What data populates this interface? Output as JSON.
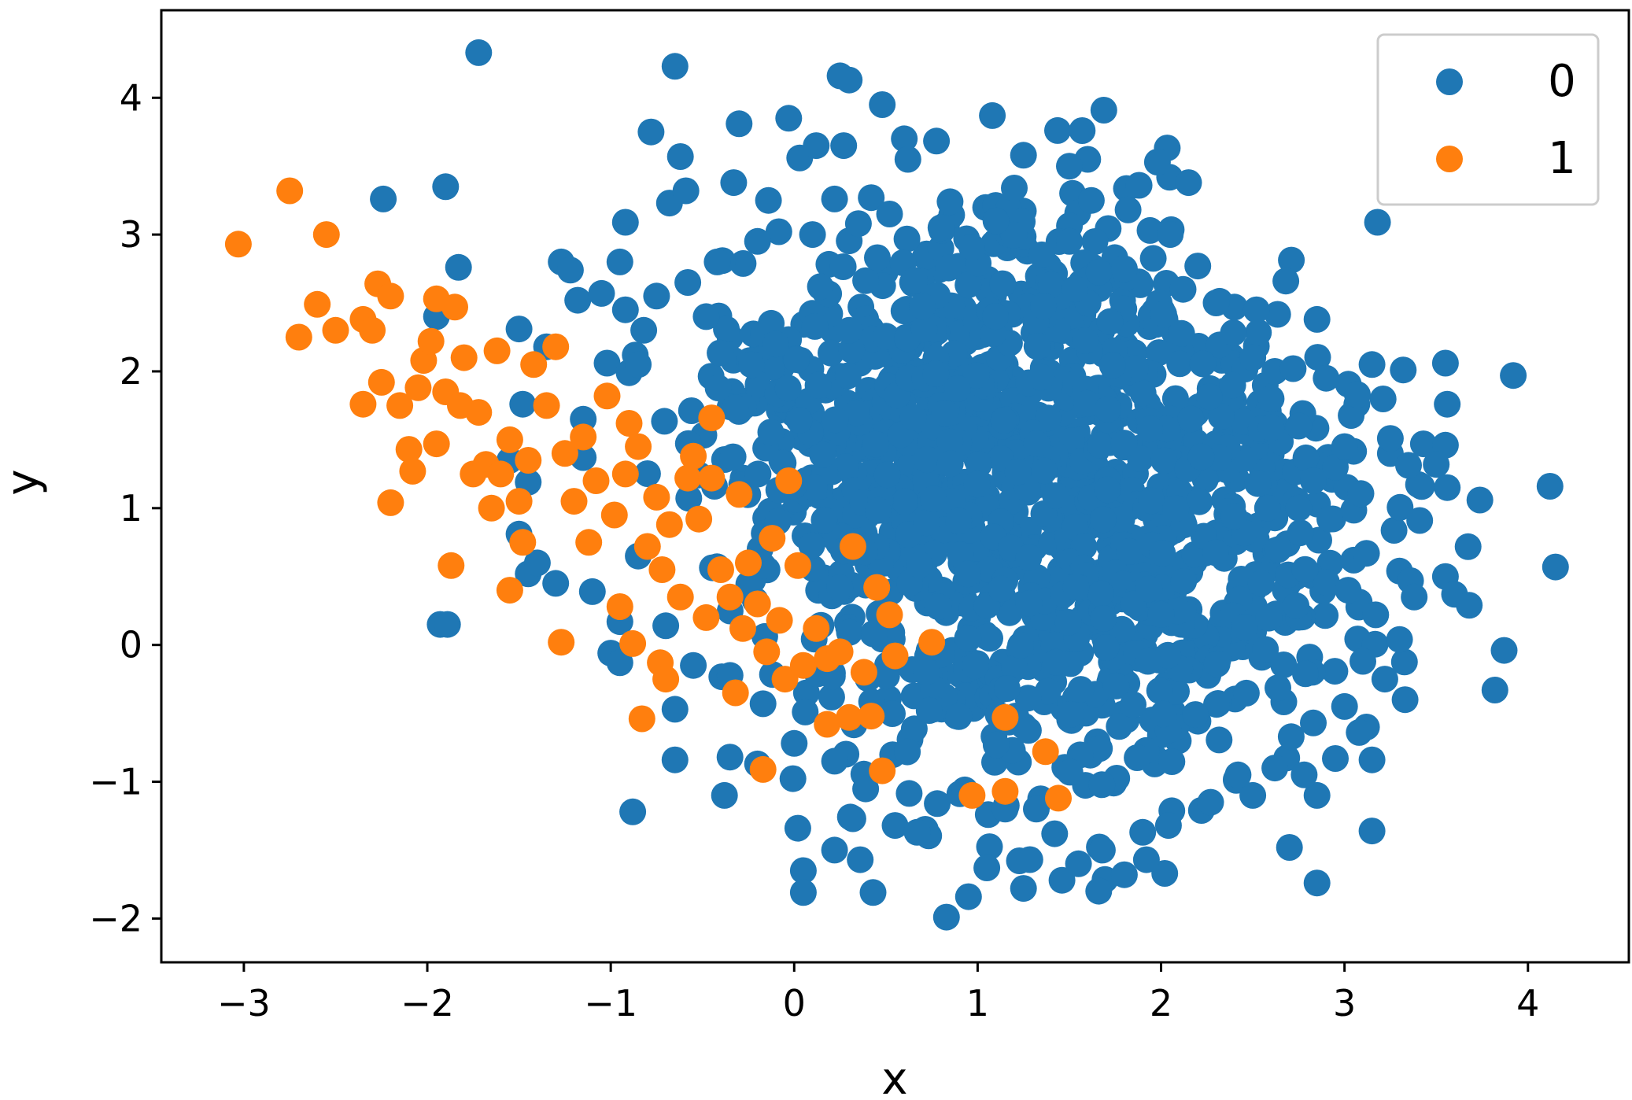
{
  "chart_data": {
    "type": "scatter",
    "title": "",
    "xlabel": "x",
    "ylabel": "y",
    "xlim": [
      -3.45,
      4.55
    ],
    "ylim": [
      -2.32,
      4.64
    ],
    "x_ticks": [
      -3,
      -2,
      -1,
      0,
      1,
      2,
      3,
      4
    ],
    "y_ticks": [
      -2,
      -1,
      0,
      1,
      2,
      3,
      4
    ],
    "x_tick_labels": [
      "−3",
      "−2",
      "−1",
      "0",
      "1",
      "2",
      "3",
      "4"
    ],
    "y_tick_labels": [
      "−2",
      "−1",
      "0",
      "1",
      "2",
      "3",
      "4"
    ],
    "grid": false,
    "legend_position": "top-right",
    "series": [
      {
        "name": "0",
        "color": "#1f77b4",
        "points": [
          [
            -1.72,
            4.33
          ],
          [
            -0.65,
            4.23
          ],
          [
            0.25,
            4.16
          ],
          [
            0.3,
            4.13
          ],
          [
            -0.78,
            3.75
          ],
          [
            -0.3,
            3.81
          ],
          [
            0.48,
            3.95
          ],
          [
            -0.03,
            3.85
          ],
          [
            1.08,
            3.87
          ],
          [
            -0.62,
            3.57
          ],
          [
            0.03,
            3.56
          ],
          [
            0.12,
            3.65
          ],
          [
            0.27,
            3.65
          ],
          [
            0.6,
            3.7
          ],
          [
            0.62,
            3.55
          ],
          [
            1.57,
            3.76
          ],
          [
            1.6,
            3.55
          ],
          [
            1.5,
            3.5
          ],
          [
            1.25,
            3.58
          ],
          [
            1.98,
            3.53
          ],
          [
            1.88,
            3.36
          ],
          [
            2.15,
            3.38
          ],
          [
            -1.9,
            3.35
          ],
          [
            -2.24,
            3.26
          ],
          [
            3.18,
            3.09
          ],
          [
            2.68,
            2.66
          ],
          [
            2.85,
            2.38
          ],
          [
            -1.83,
            2.76
          ],
          [
            -1.27,
            2.8
          ],
          [
            -1.22,
            2.74
          ],
          [
            -0.95,
            2.8
          ],
          [
            -0.92,
            3.09
          ],
          [
            -0.68,
            3.23
          ],
          [
            -0.59,
            3.32
          ],
          [
            -0.33,
            3.38
          ],
          [
            -0.14,
            3.25
          ],
          [
            0.22,
            3.26
          ],
          [
            0.42,
            3.27
          ],
          [
            0.85,
            3.24
          ],
          [
            1.2,
            3.34
          ],
          [
            1.62,
            3.25
          ],
          [
            1.82,
            3.18
          ],
          [
            1.94,
            3.03
          ],
          [
            2.05,
            3.0
          ],
          [
            2.2,
            2.77
          ],
          [
            2.4,
            2.47
          ],
          [
            2.52,
            2.45
          ],
          [
            2.62,
            2.0
          ],
          [
            2.72,
            2.02
          ],
          [
            2.9,
            1.95
          ],
          [
            3.07,
            1.83
          ],
          [
            3.15,
            2.05
          ],
          [
            3.32,
            2.01
          ],
          [
            3.55,
            2.06
          ],
          [
            3.56,
            1.76
          ],
          [
            3.92,
            1.97
          ],
          [
            3.25,
            1.51
          ],
          [
            3.43,
            1.47
          ],
          [
            3.55,
            1.46
          ],
          [
            3.5,
            1.32
          ],
          [
            3.56,
            1.15
          ],
          [
            3.41,
            0.91
          ],
          [
            3.3,
            0.54
          ],
          [
            3.36,
            0.47
          ],
          [
            3.38,
            0.35
          ],
          [
            3.55,
            0.5
          ],
          [
            3.6,
            0.37
          ],
          [
            3.68,
            0.29
          ],
          [
            4.12,
            1.16
          ],
          [
            4.15,
            0.57
          ],
          [
            3.87,
            -0.04
          ],
          [
            3.82,
            -0.33
          ],
          [
            3.3,
            0.04
          ],
          [
            3.22,
            -0.25
          ],
          [
            3.33,
            -0.4
          ],
          [
            3.12,
            -0.6
          ],
          [
            3.15,
            -0.84
          ],
          [
            3.15,
            -1.36
          ],
          [
            2.85,
            -1.1
          ],
          [
            2.85,
            -1.74
          ],
          [
            2.7,
            -1.48
          ],
          [
            2.5,
            -1.1
          ],
          [
            2.22,
            -1.21
          ],
          [
            2.04,
            -1.32
          ],
          [
            2.02,
            -1.67
          ],
          [
            1.92,
            -1.57
          ],
          [
            1.8,
            -1.68
          ],
          [
            1.66,
            -1.8
          ],
          [
            1.46,
            -1.72
          ],
          [
            1.25,
            -1.78
          ],
          [
            1.05,
            -1.63
          ],
          [
            0.95,
            -1.84
          ],
          [
            0.83,
            -1.99
          ],
          [
            0.43,
            -1.81
          ],
          [
            0.36,
            -1.57
          ],
          [
            0.22,
            -1.5
          ],
          [
            0.05,
            -1.65
          ],
          [
            0.05,
            -1.81
          ],
          [
            0.02,
            -1.34
          ],
          [
            -0.88,
            -1.22
          ],
          [
            -0.38,
            -1.1
          ],
          [
            -0.35,
            -0.82
          ],
          [
            -0.2,
            -0.87
          ],
          [
            -0.65,
            -0.84
          ],
          [
            -0.65,
            -0.47
          ],
          [
            -1.0,
            -0.06
          ],
          [
            -0.95,
            -0.13
          ],
          [
            -1.1,
            0.39
          ],
          [
            -1.45,
            0.52
          ],
          [
            -1.3,
            0.45
          ],
          [
            -1.93,
            0.15
          ],
          [
            -1.89,
            0.15
          ],
          [
            -1.95,
            2.4
          ],
          [
            -1.5,
            2.31
          ],
          [
            -1.35,
            2.18
          ],
          [
            -1.18,
            2.52
          ],
          [
            -1.05,
            2.57
          ],
          [
            -1.02,
            2.06
          ],
          [
            -0.9,
            1.99
          ],
          [
            -0.85,
            2.05
          ],
          [
            -0.92,
            2.45
          ],
          [
            -0.82,
            2.3
          ],
          [
            -1.48,
            1.76
          ],
          [
            -1.55,
            1.35
          ],
          [
            -1.45,
            1.19
          ],
          [
            -1.15,
            1.37
          ],
          [
            -1.15,
            1.65
          ],
          [
            -1.5,
            0.81
          ],
          [
            -1.4,
            0.6
          ],
          [
            -0.95,
            0.17
          ],
          [
            -0.7,
            0.14
          ],
          [
            -0.85,
            0.65
          ],
          [
            -0.55,
            -0.15
          ],
          [
            0.0,
            -0.72
          ],
          [
            -0.17,
            -0.43
          ],
          [
            0.06,
            -0.49
          ],
          [
            0.22,
            -0.85
          ],
          [
            0.32,
            -1.27
          ],
          [
            0.55,
            -1.32
          ],
          [
            0.67,
            -1.37
          ],
          [
            0.78,
            -1.16
          ],
          [
            0.93,
            -1.06
          ],
          [
            1.15,
            -1.2
          ],
          [
            1.32,
            -1.2
          ],
          [
            1.42,
            -1.38
          ],
          [
            1.55,
            -1.6
          ],
          [
            1.68,
            -1.5
          ],
          [
            1.9,
            -1.37
          ],
          [
            2.27,
            -1.15
          ],
          [
            2.42,
            -0.95
          ],
          [
            2.62,
            -0.9
          ],
          [
            2.78,
            -0.95
          ],
          [
            2.83,
            -0.57
          ],
          [
            2.95,
            -0.83
          ],
          [
            3.0,
            -0.45
          ],
          [
            3.08,
            -0.64
          ],
          [
            3.1,
            -0.12
          ],
          [
            3.17,
            0.22
          ],
          [
            3.02,
            0.4
          ],
          [
            3.05,
            0.62
          ],
          [
            3.12,
            0.67
          ],
          [
            2.92,
            0.92
          ],
          [
            2.75,
            1.0
          ],
          [
            2.95,
            1.3
          ],
          [
            2.83,
            1.2
          ],
          [
            3.0,
            1.45
          ],
          [
            2.75,
            1.6
          ],
          [
            2.6,
            1.8
          ],
          [
            2.5,
            2.1
          ],
          [
            2.3,
            2.5
          ],
          [
            2.12,
            2.6
          ],
          [
            1.8,
            2.75
          ],
          [
            1.5,
            2.95
          ],
          [
            1.1,
            3.1
          ],
          [
            0.8,
            3.05
          ],
          [
            0.52,
            3.15
          ],
          [
            0.35,
            3.08
          ],
          [
            0.1,
            3.0
          ],
          [
            -0.2,
            2.95
          ],
          [
            -0.42,
            2.8
          ],
          [
            -0.58,
            2.65
          ],
          [
            -0.75,
            2.55
          ],
          [
            -0.48,
            2.4
          ],
          [
            -0.1,
            2.2
          ],
          [
            0.3,
            2.3
          ]
        ],
        "dense_core": {
          "description_points": [
            [
              1.1,
              1.3
            ],
            [
              0.7,
              1.6
            ],
            [
              1.6,
              1.4
            ],
            [
              0.5,
              0.6
            ],
            [
              1.4,
              0.2
            ],
            [
              2.0,
              0.8
            ],
            [
              1.8,
              1.9
            ],
            [
              0.9,
              2.3
            ],
            [
              0.3,
              1.1
            ],
            [
              2.3,
              0.3
            ],
            [
              1.0,
              -0.4
            ],
            [
              1.9,
              -0.3
            ],
            [
              2.5,
              1.2
            ],
            [
              0.1,
              1.8
            ],
            [
              1.3,
              2.6
            ]
          ]
        }
      },
      {
        "name": "1",
        "color": "#ff7f0e",
        "points": [
          [
            -3.03,
            2.93
          ],
          [
            -2.75,
            3.32
          ],
          [
            -2.55,
            3.0
          ],
          [
            -2.6,
            2.49
          ],
          [
            -2.7,
            2.25
          ],
          [
            -2.5,
            2.3
          ],
          [
            -2.35,
            2.38
          ],
          [
            -2.27,
            2.64
          ],
          [
            -2.2,
            2.55
          ],
          [
            -2.3,
            2.3
          ],
          [
            -2.25,
            1.92
          ],
          [
            -2.35,
            1.76
          ],
          [
            -2.15,
            1.75
          ],
          [
            -2.2,
            1.04
          ],
          [
            -2.1,
            1.43
          ],
          [
            -2.08,
            1.27
          ],
          [
            -2.05,
            1.88
          ],
          [
            -2.02,
            2.08
          ],
          [
            -1.98,
            2.22
          ],
          [
            -1.95,
            1.47
          ],
          [
            -1.9,
            1.85
          ],
          [
            -1.85,
            2.47
          ],
          [
            -1.95,
            2.53
          ],
          [
            -1.8,
            2.1
          ],
          [
            -1.82,
            1.75
          ],
          [
            -1.75,
            1.25
          ],
          [
            -1.72,
            1.7
          ],
          [
            -1.68,
            1.32
          ],
          [
            -1.65,
            1.0
          ],
          [
            -1.62,
            2.15
          ],
          [
            -1.55,
            1.5
          ],
          [
            -1.6,
            1.25
          ],
          [
            -1.5,
            1.05
          ],
          [
            -1.48,
            0.75
          ],
          [
            -1.45,
            1.35
          ],
          [
            -1.42,
            2.05
          ],
          [
            -1.35,
            1.75
          ],
          [
            -1.3,
            2.18
          ],
          [
            -1.25,
            1.4
          ],
          [
            -1.2,
            1.05
          ],
          [
            -1.15,
            1.52
          ],
          [
            -1.12,
            0.75
          ],
          [
            -1.08,
            1.2
          ],
          [
            -1.02,
            1.82
          ],
          [
            -0.98,
            0.95
          ],
          [
            -0.92,
            1.25
          ],
          [
            -0.9,
            1.62
          ],
          [
            -0.85,
            1.45
          ],
          [
            -0.8,
            0.72
          ],
          [
            -0.75,
            1.08
          ],
          [
            -0.72,
            0.55
          ],
          [
            -0.68,
            0.88
          ],
          [
            -0.62,
            0.35
          ],
          [
            -0.58,
            1.22
          ],
          [
            -0.55,
            1.38
          ],
          [
            -0.52,
            0.92
          ],
          [
            -0.48,
            0.2
          ],
          [
            -0.45,
            1.22
          ],
          [
            -0.4,
            0.55
          ],
          [
            -0.35,
            0.35
          ],
          [
            -0.32,
            -0.35
          ],
          [
            -0.3,
            1.1
          ],
          [
            -0.28,
            0.12
          ],
          [
            -0.25,
            0.6
          ],
          [
            -0.2,
            0.3
          ],
          [
            -0.15,
            -0.05
          ],
          [
            -0.12,
            0.78
          ],
          [
            -0.08,
            0.18
          ],
          [
            -0.05,
            -0.25
          ],
          [
            -0.03,
            1.2
          ],
          [
            0.02,
            0.58
          ],
          [
            0.05,
            -0.15
          ],
          [
            0.12,
            0.12
          ],
          [
            0.18,
            -0.1
          ],
          [
            0.25,
            -0.05
          ],
          [
            0.32,
            0.72
          ],
          [
            0.38,
            -0.2
          ],
          [
            0.45,
            0.42
          ],
          [
            0.52,
            0.22
          ],
          [
            0.55,
            -0.08
          ],
          [
            0.75,
            0.02
          ],
          [
            0.18,
            -0.58
          ],
          [
            0.3,
            -0.53
          ],
          [
            0.42,
            -0.52
          ],
          [
            0.48,
            -0.92
          ],
          [
            0.97,
            -1.1
          ],
          [
            1.15,
            -0.53
          ],
          [
            1.15,
            -1.07
          ],
          [
            1.37,
            -0.78
          ],
          [
            1.44,
            -1.12
          ],
          [
            -0.45,
            1.66
          ],
          [
            -0.95,
            0.28
          ],
          [
            -0.88,
            0.01
          ],
          [
            -0.73,
            -0.13
          ],
          [
            -0.7,
            -0.25
          ],
          [
            -0.83,
            -0.54
          ],
          [
            -0.17,
            -0.91
          ],
          [
            -1.27,
            0.02
          ],
          [
            -1.55,
            0.4
          ],
          [
            -1.87,
            0.58
          ]
        ]
      }
    ],
    "legend": [
      "0",
      "1"
    ]
  }
}
